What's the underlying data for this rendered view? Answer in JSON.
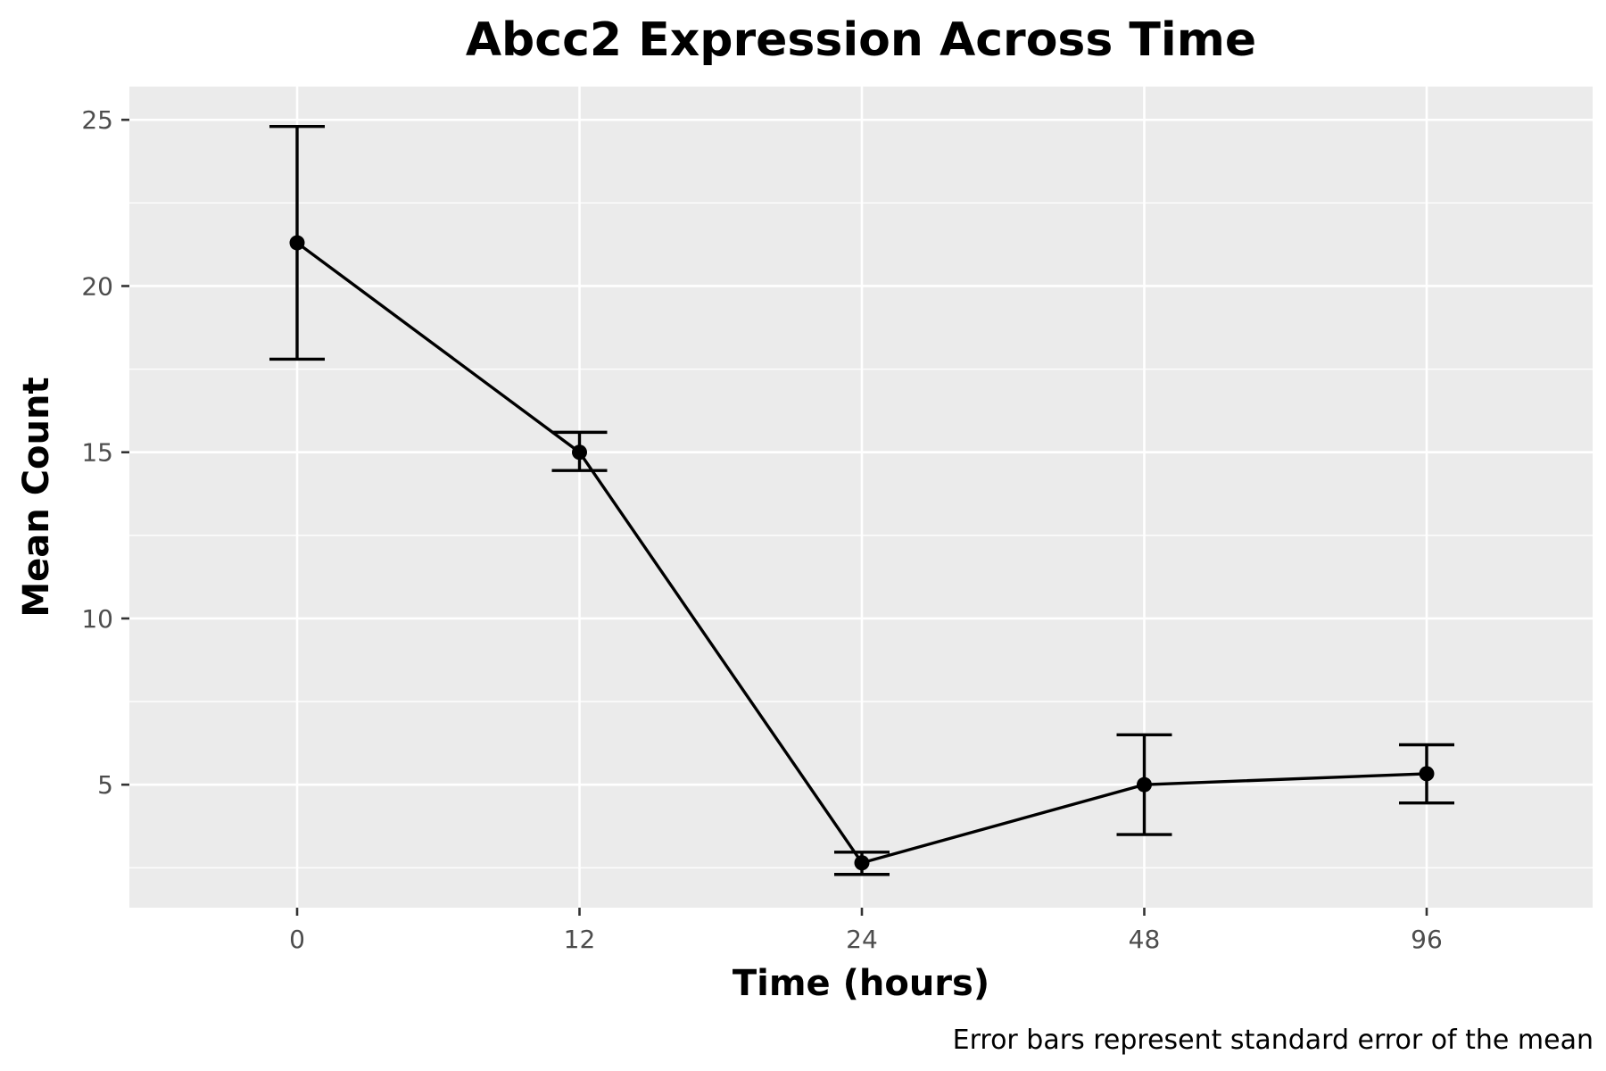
{
  "chart_data": {
    "type": "line",
    "title": "Abcc2 Expression Across Time",
    "xlabel": "Time (hours)",
    "ylabel": "Mean Count",
    "caption": "Error bars represent standard error of the mean",
    "categories": [
      "0",
      "12",
      "24",
      "48",
      "96"
    ],
    "series": [
      {
        "values": [
          21.3,
          15.0,
          2.65,
          5.0,
          5.33
        ],
        "error_lower": [
          17.8,
          14.45,
          2.3,
          3.5,
          4.45
        ],
        "error_upper": [
          24.8,
          15.6,
          2.97,
          6.5,
          6.2
        ]
      }
    ],
    "ylim": [
      1.3,
      26.0
    ],
    "yticks": [
      5,
      10,
      15,
      20,
      25
    ],
    "ytick_labels": [
      "5",
      "10",
      "15",
      "20",
      "25"
    ],
    "grid": true,
    "colors": {
      "panel": "#ebebeb",
      "grid": "#ffffff",
      "series": "#000000",
      "tick_text": "#4d4d4d"
    }
  }
}
